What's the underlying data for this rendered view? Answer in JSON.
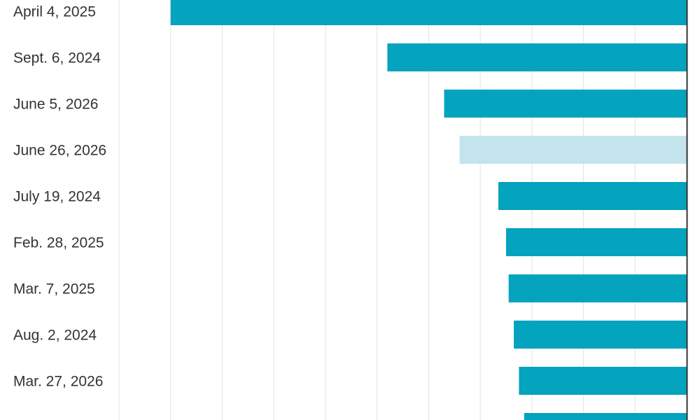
{
  "chart_data": {
    "type": "bar",
    "orientation": "horizontal",
    "categories": [
      "April 4, 2025",
      "Sept. 6, 2024",
      "June 5, 2026",
      "June 26, 2026",
      "July 19, 2024",
      "Feb. 28, 2025",
      "Mar. 7, 2025",
      "Aug. 2, 2024",
      "Mar. 27, 2026",
      null
    ],
    "values": [
      -10.0,
      -5.8,
      -4.7,
      -4.4,
      -3.65,
      -3.5,
      -3.45,
      -3.35,
      -3.25,
      -3.15
    ],
    "colors": [
      "#04a3be",
      "#04a3be",
      "#04a3be",
      "#c4e4ed",
      "#04a3be",
      "#04a3be",
      "#04a3be",
      "#04a3be",
      "#04a3be",
      "#04a3be"
    ],
    "xlim": [
      -11,
      0
    ],
    "xticks": [
      -11,
      -10,
      -9,
      -8,
      -7,
      -6,
      -5,
      -4,
      -3,
      -2,
      -1,
      0
    ],
    "grid": true
  }
}
